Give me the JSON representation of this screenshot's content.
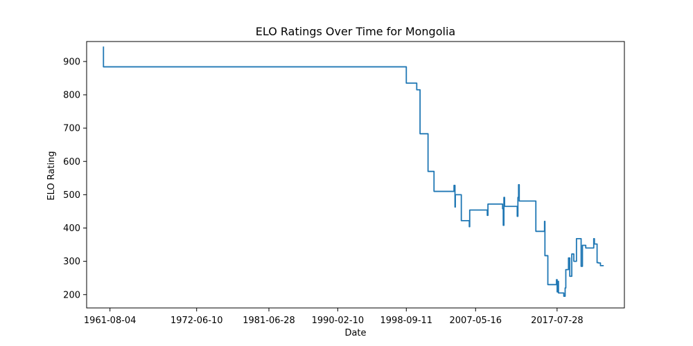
{
  "chart_data": {
    "type": "line",
    "title": "ELO Ratings Over Time for Mongolia",
    "xlabel": "Date",
    "ylabel": "ELO Rating",
    "x_ticks": [
      "1961-08-04",
      "1972-06-10",
      "1981-06-28",
      "1990-02-10",
      "1998-09-11",
      "2007-05-16",
      "2017-07-28"
    ],
    "y_ticks": [
      200,
      300,
      400,
      500,
      600,
      700,
      800,
      900
    ],
    "xlim": [
      "1958-09-01",
      "2026-01-01"
    ],
    "ylim": [
      160,
      960
    ],
    "grid": false,
    "line_color": "#1f77b4",
    "series": [
      {
        "x": [
          "1960-10-10",
          "1960-10-10",
          "1960-10-15",
          "1960-10-15",
          "1998-09-11",
          "1998-09-11",
          "2000-01-01",
          "2000-01-01",
          "2000-06-01",
          "2000-06-01",
          "2001-06-01",
          "2001-06-01",
          "2002-03-01",
          "2002-03-01",
          "2004-09-01",
          "2004-09-01",
          "2004-10-15",
          "2004-10-15",
          "2004-11-01",
          "2004-11-01",
          "2005-08-01",
          "2005-08-01",
          "2006-08-01",
          "2006-08-01",
          "2006-08-20",
          "2006-08-20",
          "2008-11-01",
          "2008-11-01",
          "2008-12-01",
          "2008-12-01",
          "2010-10-01",
          "2010-10-01",
          "2010-11-01",
          "2010-11-01",
          "2010-12-01",
          "2010-12-01",
          "2011-01-01",
          "2011-01-01",
          "2012-08-01",
          "2012-08-01",
          "2012-09-01",
          "2012-09-01",
          "2012-10-01",
          "2012-10-01",
          "2012-11-01",
          "2012-11-01",
          "2014-12-01",
          "2014-12-01",
          "2016-01-01",
          "2016-01-01",
          "2016-01-20",
          "2016-01-20",
          "2016-06-01",
          "2016-06-01",
          "2017-07-01",
          "2017-07-01",
          "2017-08-01",
          "2017-08-01",
          "2017-09-01",
          "2017-09-01",
          "2017-10-01",
          "2017-10-01",
          "2018-06-01",
          "2018-06-01",
          "2018-08-01",
          "2018-08-01",
          "2018-09-01",
          "2018-09-01",
          "2019-01-01",
          "2019-01-01",
          "2019-03-01",
          "2019-03-01",
          "2019-06-01",
          "2019-06-01",
          "2019-09-01",
          "2019-09-01",
          "2020-01-01",
          "2020-01-01",
          "2020-03-01",
          "2020-03-01",
          "2020-08-01",
          "2020-08-01",
          "2020-10-01",
          "2020-10-01",
          "2021-03-01",
          "2021-03-01",
          "2022-03-01",
          "2022-03-01",
          "2022-04-01",
          "2022-04-01",
          "2022-08-01",
          "2022-08-01",
          "2022-10-01",
          "2022-10-01",
          "2023-01-01",
          "2023-01-01",
          "2023-04-01",
          "2023-04-01",
          "2023-06-01"
        ],
        "values": [
          945,
          884,
          884,
          884,
          884,
          835,
          835,
          815,
          815,
          683,
          683,
          570,
          570,
          510,
          510,
          528,
          528,
          463,
          463,
          500,
          500,
          422,
          422,
          404,
          404,
          454,
          454,
          438,
          438,
          472,
          472,
          458,
          458,
          408,
          408,
          492,
          492,
          465,
          465,
          435,
          435,
          492,
          492,
          530,
          530,
          481,
          481,
          390,
          390,
          420,
          420,
          317,
          317,
          230,
          230,
          245,
          245,
          208,
          208,
          240,
          240,
          205,
          205,
          195,
          195,
          220,
          220,
          275,
          275,
          310,
          310,
          255,
          255,
          322,
          322,
          300,
          300,
          368,
          368,
          368,
          368,
          285,
          285,
          348,
          348,
          340,
          340,
          368,
          368,
          352,
          352,
          296,
          296,
          295,
          295,
          287,
          287,
          287,
          287
        ]
      }
    ]
  }
}
